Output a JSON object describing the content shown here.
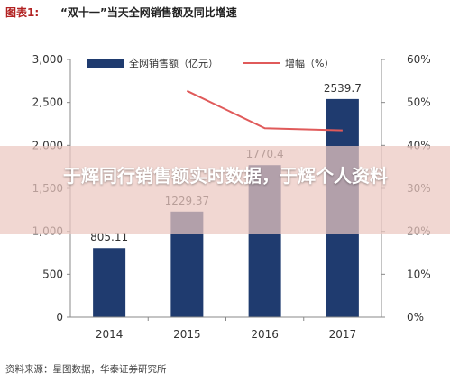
{
  "header": {
    "figure_label": "图表1:",
    "title": "“双十一”当天全网销售额及同比增速"
  },
  "source_note": "资料来源：星图数据，华泰证券研究所",
  "overlay": {
    "text": "于辉同行销售额实时数据，于辉个人资料"
  },
  "colors": {
    "bar": "#1f3b6f",
    "line": "#e05a5a",
    "header_rule": "#8b1a1a",
    "axis_text": "#333333"
  },
  "chart_data": {
    "type": "bar",
    "categories": [
      "2014",
      "2015",
      "2016",
      "2017"
    ],
    "series": [
      {
        "name": "全网销售额（亿元）",
        "type": "bar",
        "axis": "left",
        "values": [
          805.11,
          1229.37,
          1770.4,
          2539.7
        ],
        "data_labels": [
          "805.11",
          "1229.37",
          "1770.4",
          "2539.7"
        ]
      },
      {
        "name": "增幅（%）",
        "type": "line",
        "axis": "right",
        "values": [
          null,
          52.7,
          44.0,
          43.5
        ]
      }
    ],
    "left_axis": {
      "range": [
        0,
        3000
      ],
      "ticks": [
        0,
        500,
        1000,
        1500,
        2000,
        2500,
        3000
      ],
      "tick_labels": [
        "0",
        "500",
        "1,000",
        "1,500",
        "2,000",
        "2,500",
        "3,000"
      ]
    },
    "right_axis": {
      "range": [
        0,
        60
      ],
      "ticks": [
        0,
        10,
        20,
        30,
        40,
        50,
        60
      ],
      "tick_labels": [
        "0%",
        "10%",
        "20%",
        "30%",
        "40%",
        "50%",
        "60%"
      ]
    },
    "legend_position": "top",
    "grid": false
  }
}
